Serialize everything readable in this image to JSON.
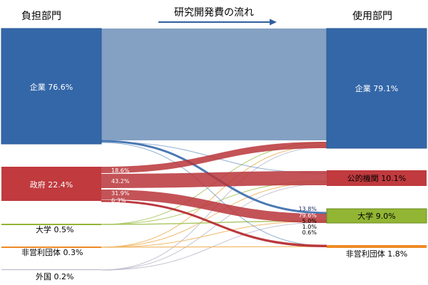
{
  "headers": {
    "source_title": "負担部門",
    "flow_title": "研究開発費の流れ",
    "use_title": "使用部門"
  },
  "colors": {
    "blue": "#3467a8",
    "red": "#c03a3e",
    "green": "#92b534",
    "orange": "#ee8a24",
    "flow_blue_light": "#6f90b8",
    "flow_red": "#b9353a",
    "flow_thin_blue": "#4a79b4",
    "flow_thin_orange": "#f0b25c",
    "flow_thin_green": "#a5c45a",
    "flow_thin_gray": "#b5b5c8"
  },
  "sources": [
    {
      "id": "corp",
      "label": "企業 76.6%",
      "pct": 76.6,
      "color_key": "blue"
    },
    {
      "id": "gov",
      "label": "政府 22.4%",
      "pct": 22.4,
      "color_key": "red"
    },
    {
      "id": "univ",
      "label": "大学 0.5%",
      "pct": 0.5,
      "color_key": "green"
    },
    {
      "id": "npo",
      "label": "非営利団体 0.3%",
      "pct": 0.3,
      "color_key": "orange"
    },
    {
      "id": "foreign",
      "label": "外国 0.2%",
      "pct": 0.2,
      "color_key": "flow_thin_gray"
    }
  ],
  "targets": [
    {
      "id": "corp",
      "label": "企業 79.1%",
      "pct": 79.1,
      "color_key": "blue"
    },
    {
      "id": "public",
      "label": "公的機関 10.1%",
      "pct": 10.1,
      "color_key": "red"
    },
    {
      "id": "univ",
      "label": "大学 9.0%",
      "pct": 9.0,
      "color_key": "green"
    },
    {
      "id": "npo",
      "label": "非営利団体 1.8%",
      "pct": 1.8,
      "color_key": "orange"
    }
  ],
  "source_flow_labels": [
    {
      "source": "gov",
      "label": "18.6%"
    },
    {
      "source": "gov",
      "label": "43.2%"
    },
    {
      "source": "gov",
      "label": "31.9%"
    },
    {
      "source": "gov",
      "label": "6.3%"
    }
  ],
  "target_flow_labels": [
    {
      "target": "univ",
      "label": "13.8%"
    },
    {
      "target": "univ",
      "label": "79.6%"
    },
    {
      "target": "univ",
      "label": "5.0%"
    },
    {
      "target": "univ",
      "label": "1.0%"
    },
    {
      "target": "univ",
      "label": "0.6%"
    }
  ],
  "flows": [
    {
      "from": "corp",
      "to": "corp",
      "style": "main"
    },
    {
      "from": "corp",
      "to": "public",
      "style": "thin_blue"
    },
    {
      "from": "corp",
      "to": "univ",
      "style": "blue"
    },
    {
      "from": "corp",
      "to": "npo",
      "style": "thin_blue"
    },
    {
      "from": "gov",
      "to": "corp",
      "style": "red"
    },
    {
      "from": "gov",
      "to": "public",
      "style": "red"
    },
    {
      "from": "gov",
      "to": "univ",
      "style": "red"
    },
    {
      "from": "gov",
      "to": "npo",
      "style": "red"
    },
    {
      "from": "univ",
      "to": "corp",
      "style": "thin_green"
    },
    {
      "from": "univ",
      "to": "public",
      "style": "thin_green"
    },
    {
      "from": "univ",
      "to": "univ",
      "style": "thin_green"
    },
    {
      "from": "npo",
      "to": "corp",
      "style": "thin_orange"
    },
    {
      "from": "npo",
      "to": "public",
      "style": "thin_orange"
    },
    {
      "from": "npo",
      "to": "univ",
      "style": "thin_orange"
    },
    {
      "from": "npo",
      "to": "npo",
      "style": "thin_orange"
    },
    {
      "from": "foreign",
      "to": "corp",
      "style": "thin_gray"
    },
    {
      "from": "foreign",
      "to": "public",
      "style": "thin_gray"
    },
    {
      "from": "foreign",
      "to": "univ",
      "style": "thin_gray"
    }
  ]
}
